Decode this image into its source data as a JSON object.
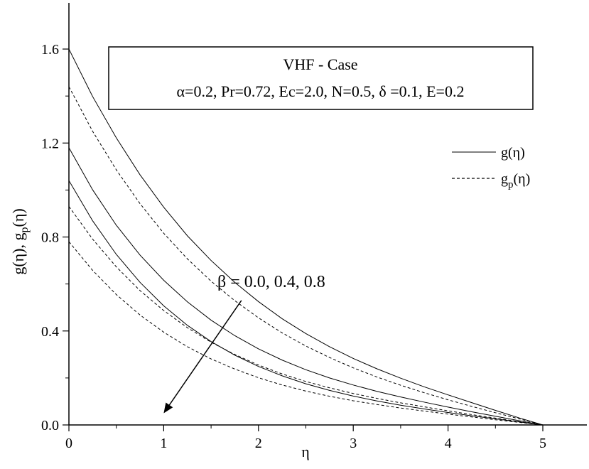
{
  "chart_data": {
    "type": "line",
    "title": "",
    "xlabel": "η",
    "ylabel": "g(η), g",
    "ylabel_sub": "p",
    "ylabel_tail": "(η)",
    "xlim": [
      0,
      5.5
    ],
    "ylim": [
      0,
      1.7
    ],
    "x_ticks": [
      0,
      1,
      2,
      3,
      4,
      5
    ],
    "x_tick_labels": [
      "0",
      "1",
      "2",
      "3",
      "4",
      "5"
    ],
    "y_ticks": [
      0,
      0.4,
      0.8,
      1.2,
      1.6
    ],
    "y_tick_labels": [
      "0.0",
      "0.4",
      "0.8",
      "1.2",
      "1.6"
    ],
    "grid": false,
    "info_box": {
      "line1": "VHF - Case",
      "line2": "α=0.2, Pr=0.72, Ec=2.0, N=0.5, δ =0.1, E=0.2"
    },
    "legend": {
      "placement": "right",
      "solid_label_main": "g(η)",
      "dashed_label_main": "g",
      "dashed_label_sub": "p",
      "dashed_label_tail": "(η)"
    },
    "annotation": {
      "text": "β = 0.0, 0.4, 0.8",
      "arrow_from": [
        1.82,
        0.53
      ],
      "arrow_to": [
        1.0,
        0.05
      ]
    },
    "series": [
      {
        "group": "g",
        "style": "solid",
        "x": [
          0,
          0.25,
          0.5,
          0.75,
          1,
          1.25,
          1.5,
          1.75,
          2,
          2.25,
          2.5,
          2.75,
          3,
          3.25,
          3.5,
          3.75,
          4,
          4.25,
          4.5,
          4.75,
          5
        ],
        "y": [
          1.6,
          1.398,
          1.222,
          1.065,
          0.927,
          0.805,
          0.7,
          0.607,
          0.525,
          0.452,
          0.389,
          0.333,
          0.283,
          0.239,
          0.199,
          0.162,
          0.128,
          0.095,
          0.062,
          0.03,
          0.0
        ]
      },
      {
        "group": "g",
        "style": "solid",
        "x": [
          0,
          0.25,
          0.5,
          0.75,
          1,
          1.25,
          1.5,
          1.75,
          2,
          2.25,
          2.5,
          2.75,
          3,
          3.25,
          3.5,
          3.75,
          4,
          4.25,
          4.5,
          4.75,
          5
        ],
        "y": [
          1.18,
          1.001,
          0.85,
          0.723,
          0.616,
          0.524,
          0.446,
          0.38,
          0.324,
          0.276,
          0.235,
          0.2,
          0.17,
          0.143,
          0.119,
          0.097,
          0.076,
          0.056,
          0.037,
          0.018,
          0.0
        ]
      },
      {
        "group": "g",
        "style": "solid",
        "x": [
          0,
          0.25,
          0.5,
          0.75,
          1,
          1.25,
          1.5,
          1.75,
          2,
          2.25,
          2.5,
          2.75,
          3,
          3.25,
          3.5,
          3.75,
          4,
          4.25,
          4.5,
          4.75,
          5
        ],
        "y": [
          1.04,
          0.869,
          0.726,
          0.607,
          0.507,
          0.424,
          0.355,
          0.297,
          0.249,
          0.209,
          0.175,
          0.147,
          0.123,
          0.102,
          0.084,
          0.068,
          0.053,
          0.039,
          0.026,
          0.013,
          0.0
        ]
      },
      {
        "group": "gp",
        "style": "dashed",
        "x": [
          0,
          0.25,
          0.5,
          0.75,
          1,
          1.25,
          1.5,
          1.75,
          2,
          2.25,
          2.5,
          2.75,
          3,
          3.25,
          3.5,
          3.75,
          4,
          4.25,
          4.5,
          4.75,
          5
        ],
        "y": [
          1.44,
          1.25,
          1.086,
          0.942,
          0.816,
          0.707,
          0.612,
          0.529,
          0.456,
          0.392,
          0.336,
          0.287,
          0.243,
          0.204,
          0.169,
          0.137,
          0.107,
          0.079,
          0.052,
          0.026,
          0.0
        ]
      },
      {
        "group": "gp",
        "style": "dashed",
        "x": [
          0,
          0.25,
          0.5,
          0.75,
          1,
          1.25,
          1.5,
          1.75,
          2,
          2.25,
          2.5,
          2.75,
          3,
          3.25,
          3.5,
          3.75,
          4,
          4.25,
          4.5,
          4.75,
          5
        ],
        "y": [
          0.93,
          0.791,
          0.673,
          0.572,
          0.487,
          0.414,
          0.352,
          0.3,
          0.255,
          0.217,
          0.185,
          0.158,
          0.134,
          0.113,
          0.094,
          0.077,
          0.06,
          0.044,
          0.029,
          0.014,
          0.0
        ]
      },
      {
        "group": "gp",
        "style": "dashed",
        "x": [
          0,
          0.25,
          0.5,
          0.75,
          1,
          1.25,
          1.5,
          1.75,
          2,
          2.25,
          2.5,
          2.75,
          3,
          3.25,
          3.5,
          3.75,
          4,
          4.25,
          4.5,
          4.75,
          5
        ],
        "y": [
          0.78,
          0.658,
          0.555,
          0.468,
          0.395,
          0.333,
          0.281,
          0.238,
          0.201,
          0.17,
          0.144,
          0.122,
          0.103,
          0.087,
          0.072,
          0.059,
          0.046,
          0.034,
          0.022,
          0.011,
          0.0
        ]
      }
    ]
  }
}
